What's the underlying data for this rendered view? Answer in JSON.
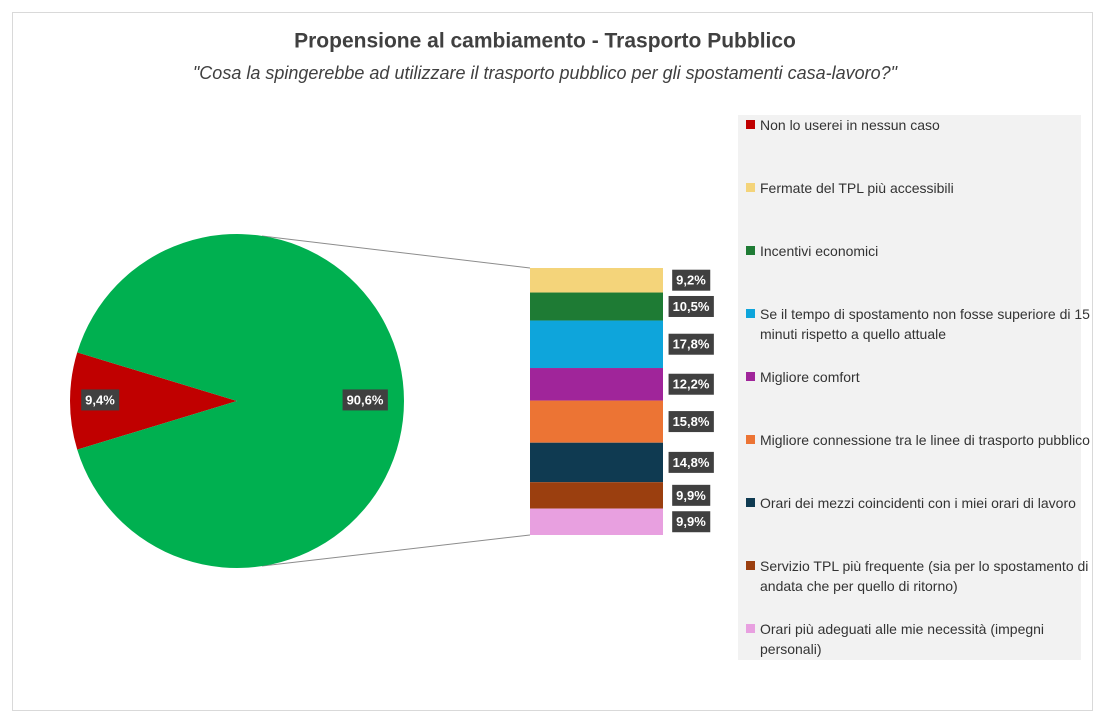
{
  "chart_data": {
    "type": "bar-of-pie",
    "title": "Propensione al cambiamento - Trasporto Pubblico",
    "subtitle": "\"Cosa la spingerebbe ad utilizzare il trasporto pubblico per gli spostamenti casa-lavoro?\"",
    "pie": {
      "categories": [
        "Non lo userei in nessun caso",
        null
      ],
      "values": [
        9.4,
        90.6
      ],
      "value_labels": [
        "9,4%",
        "90,6%"
      ],
      "colors": [
        "#c00000",
        "#00b050"
      ]
    },
    "bar": {
      "categories": [
        "Fermate del TPL più accessibili",
        "Incentivi economici",
        "Se il tempo di spostamento non fosse superiore di 15 minuti rispetto a quello attuale",
        "Migliore comfort",
        "Migliore connessione tra le linee di trasporto pubblico",
        "Orari dei mezzi coincidenti con i miei orari di lavoro",
        "Servizio TPL più frequente (sia per lo spostamento di andata che per quello di ritorno)",
        "Orari più adeguati alle mie necessità (impegni personali)"
      ],
      "values": [
        9.2,
        10.5,
        17.8,
        12.2,
        15.8,
        14.8,
        9.9,
        9.9
      ],
      "value_labels": [
        "9,2%",
        "10,5%",
        "17,8%",
        "12,2%",
        "15,8%",
        "14,8%",
        "9,9%",
        "9,9%"
      ],
      "colors": [
        "#f4d47a",
        "#1e7b34",
        "#0ea5db",
        "#a0259a",
        "#ec7434",
        "#0f3a51",
        "#9b3f0f",
        "#e8a0e0"
      ]
    }
  }
}
